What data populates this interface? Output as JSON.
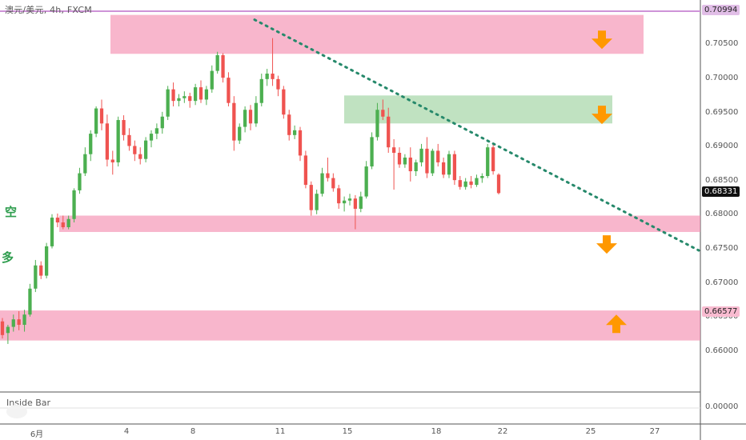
{
  "symbol_line": "澳元/美元, 4h, FXCM",
  "side_labels": {
    "left_top": "空",
    "left_bottom": "多"
  },
  "indicator": {
    "name": "Inside Bar",
    "value_label": "0.00000"
  },
  "colors": {
    "up": "#4caf50",
    "down": "#ef5350",
    "pink_zone": "#f48fb1",
    "green_zone": "#a5d6a7",
    "trendline": "#26896b",
    "arrow": "#ff9800",
    "hline": "#ce93d8"
  },
  "price_axis": {
    "labels": [
      "0.70500",
      "0.70000",
      "0.69500",
      "0.69000",
      "0.68500",
      "0.68000",
      "0.67500",
      "0.67000",
      "0.66500",
      "0.66000"
    ],
    "top_marker": "0.70994",
    "current": "0.68331",
    "support_marker": "0.66577"
  },
  "date_axis": {
    "labels": [
      {
        "text": "6月",
        "day": 6
      },
      {
        "text": "4",
        "day": 4
      },
      {
        "text": "8",
        "day": 8
      },
      {
        "text": "11",
        "day": 11
      },
      {
        "text": "15",
        "day": 15
      },
      {
        "text": "18",
        "day": 18
      },
      {
        "text": "22",
        "day": 22
      },
      {
        "text": "25",
        "day": 25
      },
      {
        "text": "27",
        "day": 27
      }
    ]
  },
  "chart_data": {
    "type": "candlestick",
    "title": "澳元/美元, 4h, FXCM",
    "ylim": [
      0.6565,
      0.711
    ],
    "horizontal_lines": [
      0.70994
    ],
    "zones": [
      {
        "kind": "resistance",
        "color": "pink",
        "top": 0.7094,
        "bottom": 0.7037
      },
      {
        "kind": "resistance",
        "color": "green",
        "top": 0.6976,
        "bottom": 0.6935
      },
      {
        "kind": "support",
        "color": "pink",
        "top": 0.68,
        "bottom": 0.6776
      },
      {
        "kind": "support",
        "color": "pink",
        "top": 0.6661,
        "bottom": 0.6617
      }
    ],
    "trendline": {
      "from": 0.7087,
      "to": 0.6749
    },
    "arrows": [
      {
        "direction": "down",
        "price": 0.7057
      },
      {
        "direction": "down",
        "price": 0.6947
      },
      {
        "direction": "down",
        "price": 0.6757
      },
      {
        "direction": "up",
        "price": 0.6642
      }
    ],
    "candles": [
      [
        0.6645,
        0.665,
        0.662,
        0.6625
      ],
      [
        0.6628,
        0.664,
        0.6612,
        0.6637
      ],
      [
        0.6637,
        0.6655,
        0.663,
        0.6648
      ],
      [
        0.6648,
        0.666,
        0.6632,
        0.664
      ],
      [
        0.664,
        0.6662,
        0.663,
        0.6655
      ],
      [
        0.6655,
        0.67,
        0.6652,
        0.6693
      ],
      [
        0.6693,
        0.6735,
        0.6688,
        0.6727
      ],
      [
        0.6727,
        0.6733,
        0.6707,
        0.6712
      ],
      [
        0.6712,
        0.676,
        0.6708,
        0.6755
      ],
      [
        0.6755,
        0.6802,
        0.6752,
        0.6797
      ],
      [
        0.6797,
        0.6803,
        0.6783,
        0.679
      ],
      [
        0.679,
        0.68,
        0.678,
        0.6783
      ],
      [
        0.6783,
        0.68,
        0.678,
        0.6795
      ],
      [
        0.6795,
        0.684,
        0.679,
        0.6837
      ],
      [
        0.6837,
        0.687,
        0.6832,
        0.6862
      ],
      [
        0.6862,
        0.69,
        0.6858,
        0.689
      ],
      [
        0.689,
        0.6925,
        0.688,
        0.692
      ],
      [
        0.692,
        0.696,
        0.6915,
        0.6957
      ],
      [
        0.6957,
        0.697,
        0.6925,
        0.6935
      ],
      [
        0.6935,
        0.6948,
        0.6872,
        0.6882
      ],
      [
        0.6882,
        0.6895,
        0.686,
        0.6878
      ],
      [
        0.6878,
        0.6945,
        0.6872,
        0.694
      ],
      [
        0.694,
        0.6947,
        0.691,
        0.6918
      ],
      [
        0.6918,
        0.6928,
        0.6895,
        0.6902
      ],
      [
        0.6902,
        0.691,
        0.688,
        0.689
      ],
      [
        0.689,
        0.69,
        0.6875,
        0.6883
      ],
      [
        0.6883,
        0.6915,
        0.6878,
        0.691
      ],
      [
        0.691,
        0.6925,
        0.69,
        0.692
      ],
      [
        0.692,
        0.6935,
        0.6912,
        0.6928
      ],
      [
        0.6928,
        0.6952,
        0.692,
        0.6945
      ],
      [
        0.6945,
        0.699,
        0.694,
        0.6985
      ],
      [
        0.6985,
        0.6995,
        0.696,
        0.6968
      ],
      [
        0.6968,
        0.6978,
        0.696,
        0.6972
      ],
      [
        0.6972,
        0.6982,
        0.6965,
        0.6975
      ],
      [
        0.6975,
        0.698,
        0.6958,
        0.6968
      ],
      [
        0.6968,
        0.6993,
        0.6962,
        0.6988
      ],
      [
        0.6988,
        0.6998,
        0.6965,
        0.697
      ],
      [
        0.697,
        0.699,
        0.6962,
        0.6985
      ],
      [
        0.6985,
        0.702,
        0.698,
        0.7012
      ],
      [
        0.7012,
        0.704,
        0.7008,
        0.7035
      ],
      [
        0.7035,
        0.7038,
        0.6995,
        0.7002
      ],
      [
        0.7002,
        0.701,
        0.696,
        0.6965
      ],
      [
        0.6965,
        0.6975,
        0.6895,
        0.691
      ],
      [
        0.691,
        0.6935,
        0.6905,
        0.693
      ],
      [
        0.693,
        0.696,
        0.6922,
        0.6955
      ],
      [
        0.6955,
        0.6962,
        0.6925,
        0.6935
      ],
      [
        0.6935,
        0.6975,
        0.693,
        0.6965
      ],
      [
        0.6965,
        0.7008,
        0.696,
        0.7
      ],
      [
        0.7,
        0.7015,
        0.699,
        0.7008
      ],
      [
        0.7008,
        0.706,
        0.699,
        0.7
      ],
      [
        0.7,
        0.7005,
        0.6975,
        0.6985
      ],
      [
        0.6985,
        0.699,
        0.6942,
        0.6948
      ],
      [
        0.6948,
        0.6955,
        0.691,
        0.6918
      ],
      [
        0.6918,
        0.6932,
        0.6912,
        0.6925
      ],
      [
        0.6925,
        0.693,
        0.688,
        0.6888
      ],
      [
        0.6888,
        0.6895,
        0.684,
        0.6845
      ],
      [
        0.6845,
        0.685,
        0.68,
        0.6808
      ],
      [
        0.6808,
        0.6838,
        0.6802,
        0.6832
      ],
      [
        0.6832,
        0.687,
        0.6828,
        0.6862
      ],
      [
        0.6862,
        0.6885,
        0.685,
        0.6855
      ],
      [
        0.6855,
        0.6862,
        0.6835,
        0.684
      ],
      [
        0.684,
        0.6845,
        0.681,
        0.6818
      ],
      [
        0.6818,
        0.6828,
        0.6806,
        0.6822
      ],
      [
        0.6822,
        0.6832,
        0.6815,
        0.6825
      ],
      [
        0.6825,
        0.683,
        0.678,
        0.681
      ],
      [
        0.681,
        0.6835,
        0.6805,
        0.6828
      ],
      [
        0.6828,
        0.688,
        0.6825,
        0.6872
      ],
      [
        0.6872,
        0.6922,
        0.6868,
        0.6915
      ],
      [
        0.6915,
        0.6965,
        0.691,
        0.6955
      ],
      [
        0.6955,
        0.697,
        0.694,
        0.6945
      ],
      [
        0.6945,
        0.6958,
        0.6892,
        0.69
      ],
      [
        0.69,
        0.6912,
        0.6838,
        0.6892
      ],
      [
        0.6892,
        0.69,
        0.687,
        0.6875
      ],
      [
        0.6875,
        0.689,
        0.687,
        0.6885
      ],
      [
        0.6885,
        0.69,
        0.685,
        0.6865
      ],
      [
        0.6865,
        0.6882,
        0.6858,
        0.6878
      ],
      [
        0.6878,
        0.6905,
        0.6872,
        0.6898
      ],
      [
        0.6898,
        0.6915,
        0.6855,
        0.6862
      ],
      [
        0.6862,
        0.6898,
        0.6858,
        0.6895
      ],
      [
        0.6895,
        0.6905,
        0.6872,
        0.6878
      ],
      [
        0.6878,
        0.6885,
        0.6855,
        0.686
      ],
      [
        0.686,
        0.6895,
        0.6855,
        0.689
      ],
      [
        0.689,
        0.6895,
        0.6845,
        0.6852
      ],
      [
        0.6852,
        0.6858,
        0.6838,
        0.6842
      ],
      [
        0.6842,
        0.6855,
        0.6838,
        0.685
      ],
      [
        0.685,
        0.6858,
        0.684,
        0.6845
      ],
      [
        0.6845,
        0.686,
        0.6842,
        0.6855
      ],
      [
        0.6855,
        0.6862,
        0.6848,
        0.6858
      ],
      [
        0.6858,
        0.6905,
        0.6855,
        0.69
      ],
      [
        0.69,
        0.6905,
        0.686,
        0.6865
      ],
      [
        0.686,
        0.6862,
        0.6831,
        0.6833
      ]
    ]
  }
}
